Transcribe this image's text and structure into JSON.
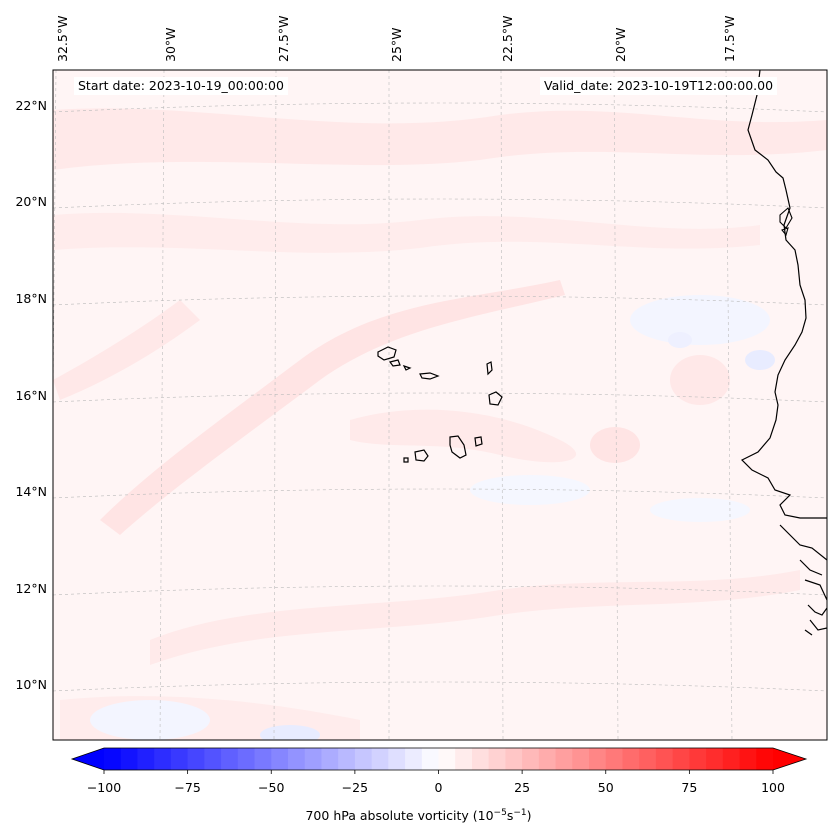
{
  "header": {
    "start_date": "Start date: 2023-10-19_00:00:00",
    "valid_date": "Valid_date: 2023-10-19T12:00:00.00"
  },
  "axes": {
    "longitude_labels": [
      "32.5°W",
      "30°W",
      "27.5°W",
      "25°W",
      "22.5°W",
      "20°W",
      "17.5°W"
    ],
    "latitude_labels": [
      "22°N",
      "20°N",
      "18°N",
      "16°N",
      "14°N",
      "12°N",
      "10°N"
    ],
    "lon_range": [
      -33.5,
      -15.0
    ],
    "lat_range": [
      9.0,
      22.8
    ],
    "gridlines": true
  },
  "colorbar": {
    "ticks": [
      "−100",
      "−75",
      "−50",
      "−25",
      "0",
      "25",
      "50",
      "75",
      "100"
    ],
    "tick_values": [
      -100,
      -75,
      -50,
      -25,
      0,
      25,
      50,
      75,
      100
    ],
    "range": [
      -100,
      100
    ],
    "label_main": "700 hPa absolute vorticity (10",
    "label_exp1": "−5",
    "label_mid": "s",
    "label_exp2": "−1",
    "label_end": ")",
    "colormap": "bwr",
    "low_color": "#0000ff",
    "mid_color": "#ffffff",
    "high_color": "#ff0000"
  },
  "field": {
    "background_color": "#fff5f5",
    "light_positive_color": "#ffe8e8",
    "light_negative_color": "#f3f5ff"
  }
}
